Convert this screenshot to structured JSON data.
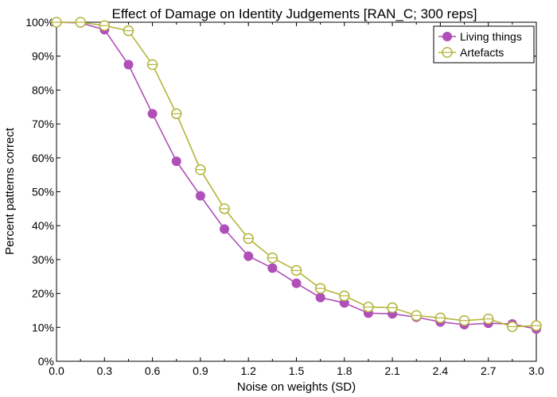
{
  "chart_data": {
    "type": "line",
    "title": "Effect of Damage on Identity Judgements [RAN_C; 300 reps]",
    "xlabel": "Noise on weights (SD)",
    "ylabel": "Percent patterns correct",
    "xlim": [
      0.0,
      3.0
    ],
    "ylim": [
      0,
      100
    ],
    "xticks": [
      0.0,
      0.3,
      0.6,
      0.9,
      1.2,
      1.5,
      1.8,
      2.1,
      2.4,
      2.7,
      3.0
    ],
    "xtick_labels": [
      "0.0",
      "0.3",
      "0.6",
      "0.9",
      "1.2",
      "1.5",
      "1.8",
      "2.1",
      "2.4",
      "2.7",
      "3.0"
    ],
    "yticks": [
      0,
      10,
      20,
      30,
      40,
      50,
      60,
      70,
      80,
      90,
      100
    ],
    "ytick_labels": [
      "0%",
      "10%",
      "20%",
      "30%",
      "40%",
      "50%",
      "60%",
      "70%",
      "80%",
      "90%",
      "100%"
    ],
    "grid": false,
    "legend_position": "top-right",
    "x": [
      0.0,
      0.15,
      0.3,
      0.45,
      0.6,
      0.75,
      0.9,
      1.05,
      1.2,
      1.35,
      1.5,
      1.65,
      1.8,
      1.95,
      2.1,
      2.25,
      2.4,
      2.55,
      2.7,
      2.85,
      3.0
    ],
    "series": [
      {
        "name": "Living things",
        "color": "#b04fb8",
        "marker": "filled-circle",
        "values": [
          100,
          99.8,
          97.8,
          87.5,
          73.0,
          59.0,
          48.8,
          39.0,
          31.0,
          27.5,
          23.0,
          18.8,
          17.2,
          14.2,
          14.0,
          13.0,
          11.6,
          10.8,
          11.2,
          11.0,
          9.5
        ]
      },
      {
        "name": "Artefacts",
        "color": "#b3b53a",
        "marker": "open-circle-errorbar",
        "values": [
          100,
          100,
          99.0,
          97.5,
          87.5,
          73.0,
          56.5,
          45.0,
          36.2,
          30.5,
          26.8,
          21.5,
          19.3,
          16.0,
          15.8,
          13.5,
          12.8,
          12.0,
          12.5,
          10.2,
          10.5
        ]
      }
    ]
  }
}
